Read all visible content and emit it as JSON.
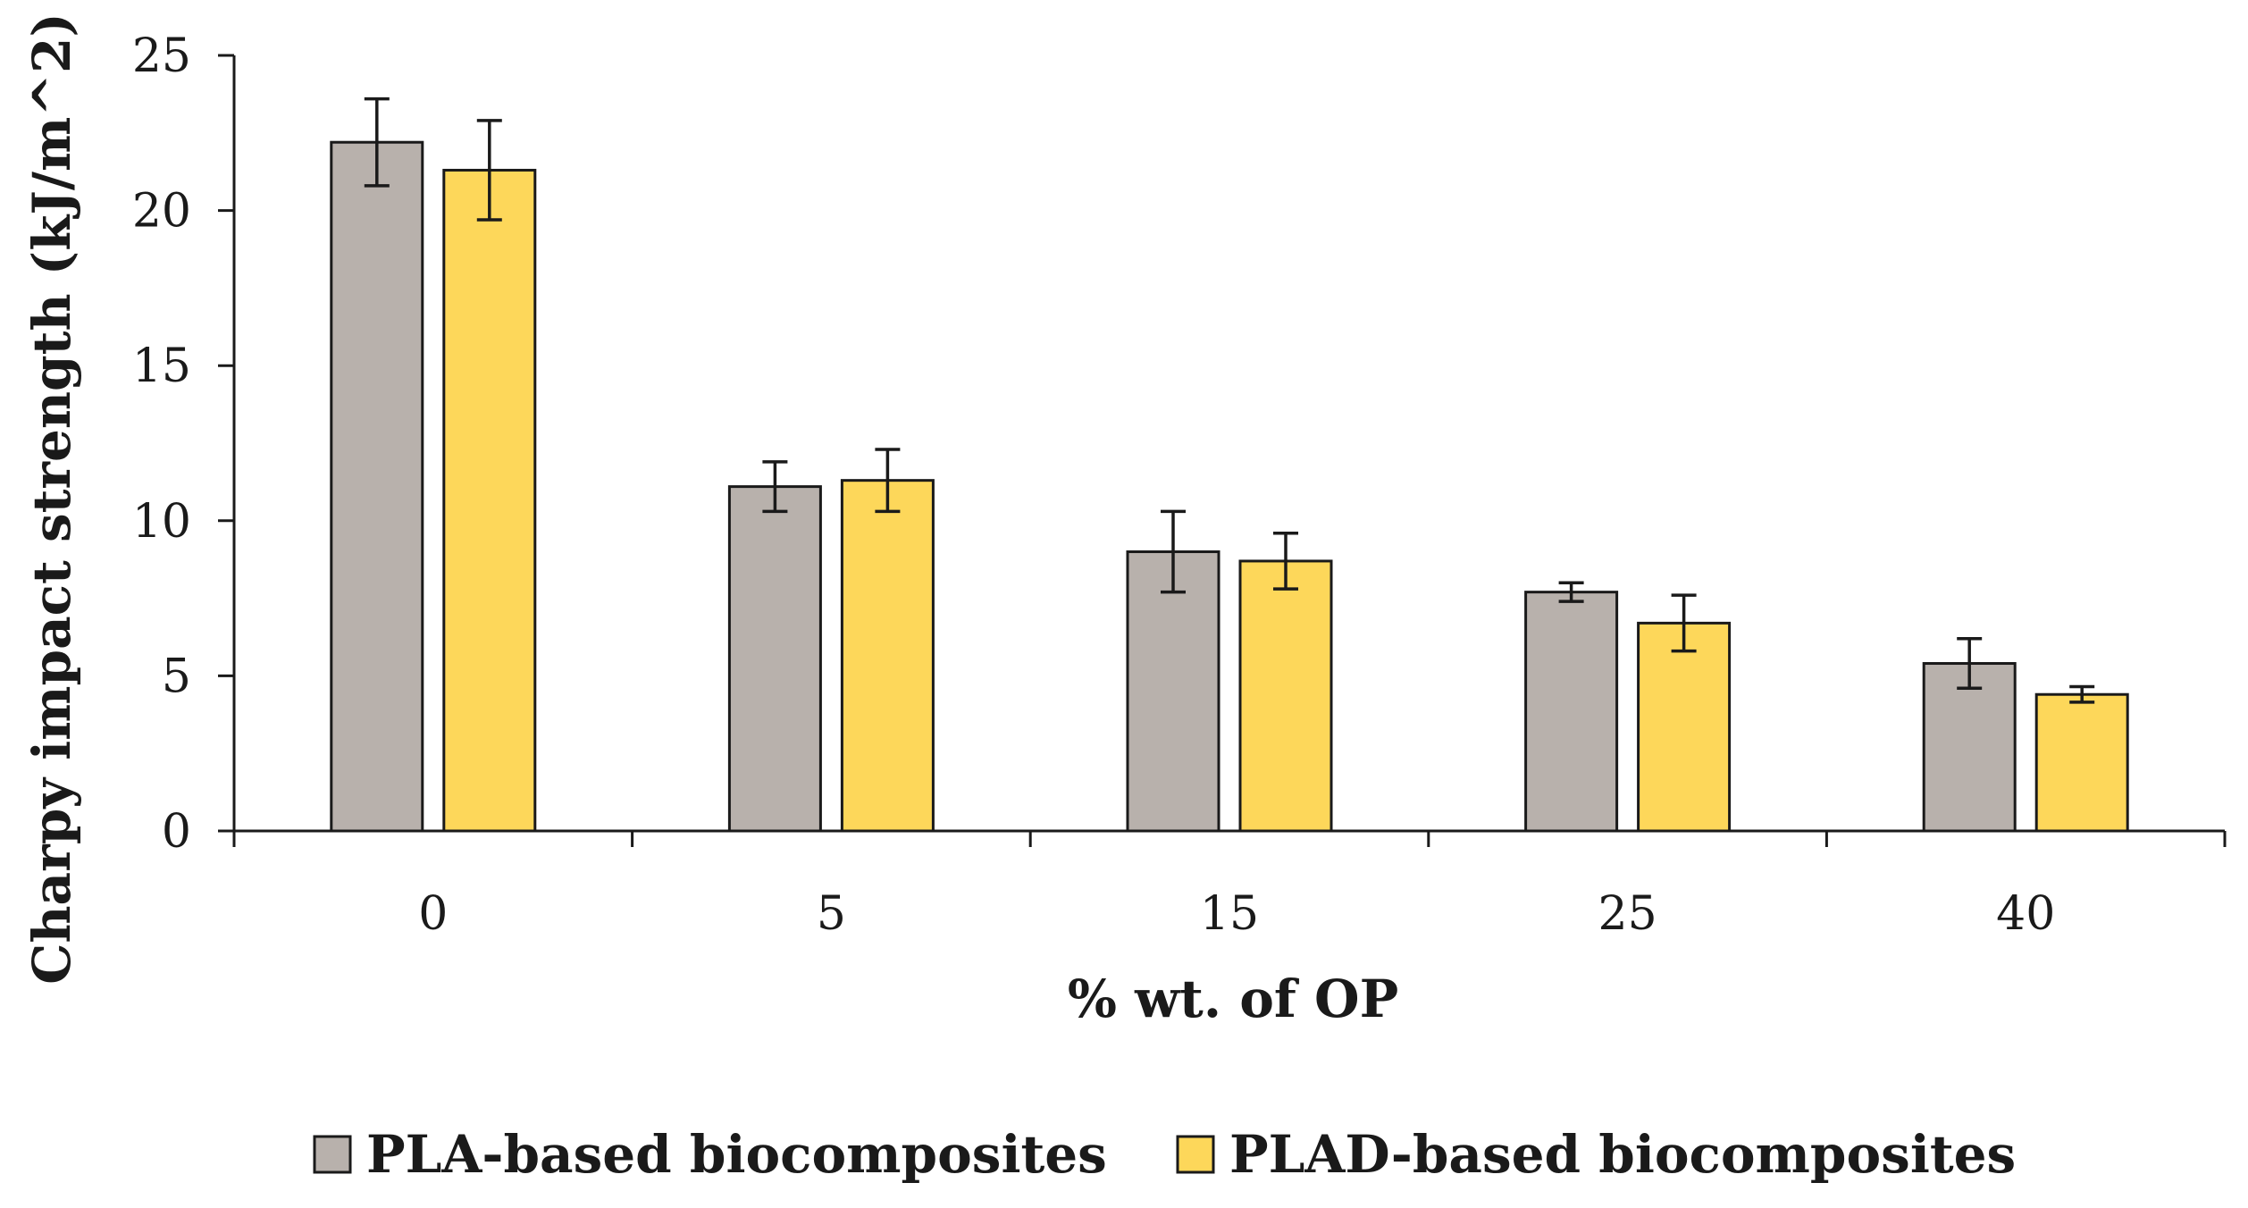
{
  "chart_data": {
    "type": "bar",
    "title": "",
    "xlabel": "% wt. of OP",
    "ylabel": "Charpy impact strength (kJ/m^2)",
    "ylim": [
      0,
      25
    ],
    "yticks": [
      0,
      5,
      10,
      15,
      20,
      25
    ],
    "categories": [
      "0",
      "5",
      "15",
      "25",
      "40"
    ],
    "series": [
      {
        "name": "PLA-based biocomposites",
        "color": "#b8b1ac",
        "values": [
          22.2,
          11.1,
          9.0,
          7.7,
          5.4
        ],
        "errors": [
          1.4,
          0.8,
          1.3,
          0.3,
          0.8
        ]
      },
      {
        "name": "PLAD-based biocomposites",
        "color": "#fdd75a",
        "values": [
          21.3,
          11.3,
          8.7,
          6.7,
          4.4
        ],
        "errors": [
          1.6,
          1.0,
          0.9,
          0.9,
          0.25
        ]
      }
    ],
    "legend_position": "bottom",
    "grid": false
  }
}
